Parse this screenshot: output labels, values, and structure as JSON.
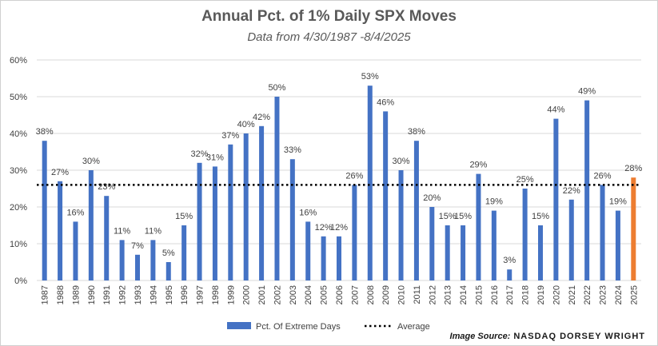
{
  "title": "Annual Pct. of 1% Daily SPX Moves",
  "subtitle": "Data from 4/30/1987 -8/4/2025",
  "source_label": "Image Source:",
  "source_name": "NASDAQ DORSEY WRIGHT",
  "colors": {
    "bar": "#4472C4",
    "highlight_bar": "#ED7D31",
    "average_line": "#000000",
    "grid": "#d9d9d9",
    "text": "#404040"
  },
  "chart_data": {
    "type": "bar",
    "categories": [
      "1987",
      "1988",
      "1989",
      "1990",
      "1991",
      "1992",
      "1993",
      "1994",
      "1995",
      "1996",
      "1997",
      "1998",
      "1999",
      "2000",
      "2001",
      "2002",
      "2003",
      "2004",
      "2005",
      "2006",
      "2007",
      "2008",
      "2009",
      "2010",
      "2011",
      "2012",
      "2013",
      "2014",
      "2015",
      "2016",
      "2017",
      "2018",
      "2019",
      "2020",
      "2021",
      "2022",
      "2023",
      "2024",
      "2025"
    ],
    "series": [
      {
        "name": "Pct. Of Extreme Days",
        "values": [
          38,
          27,
          16,
          30,
          23,
          11,
          7,
          11,
          5,
          15,
          32,
          31,
          37,
          40,
          42,
          50,
          33,
          16,
          12,
          12,
          26,
          53,
          46,
          30,
          38,
          20,
          15,
          15,
          29,
          19,
          3,
          25,
          15,
          44,
          22,
          49,
          26,
          19,
          28
        ],
        "labels": [
          "38%",
          "27%",
          "16%",
          "30%",
          "23%",
          "11%",
          "7%",
          "11%",
          "5%",
          "15%",
          "32%",
          "31%",
          "37%",
          "40%",
          "42%",
          "50%",
          "33%",
          "16%",
          "12%",
          "12%",
          "26%",
          "53%",
          "46%",
          "30%",
          "38%",
          "20%",
          "15%",
          "15%",
          "29%",
          "19%",
          "3%",
          "25%",
          "15%",
          "44%",
          "22%",
          "49%",
          "26%",
          "19%",
          "28%"
        ]
      },
      {
        "name": "Average",
        "type": "line",
        "style": "dotted",
        "value": 26
      }
    ],
    "highlight_category": "2025",
    "ylim": [
      0,
      60
    ],
    "yticks": [
      0,
      10,
      20,
      30,
      40,
      50,
      60
    ],
    "ytick_labels": [
      "0%",
      "10%",
      "20%",
      "30%",
      "40%",
      "50%",
      "60%"
    ],
    "grid": true,
    "legend_position": "bottom"
  }
}
